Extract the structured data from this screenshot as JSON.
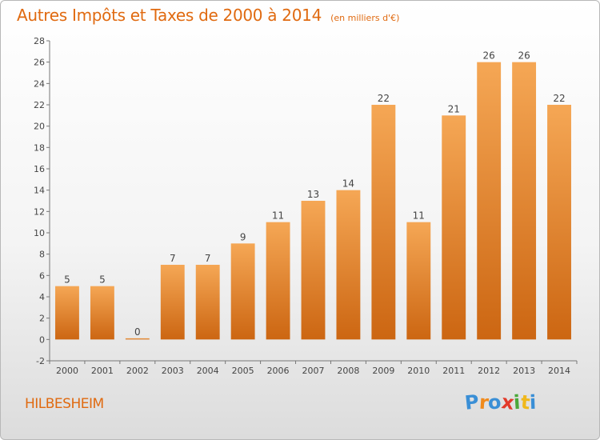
{
  "header": {
    "title": "Autres Impôts et Taxes de 2000 à 2014",
    "unit": "(en milliers d'€)"
  },
  "footer": {
    "city": "HILBESHEIM",
    "brand": "Proxiti",
    "brand_letters": [
      {
        "char": "P",
        "color": "#3a8fd6"
      },
      {
        "char": "r",
        "color": "#f08a1c"
      },
      {
        "char": "o",
        "color": "#3a8fd6"
      },
      {
        "char": "x",
        "color": "#e23a2a"
      },
      {
        "char": "i",
        "color": "#4aa83a"
      },
      {
        "char": "t",
        "color": "#f0b81c"
      },
      {
        "char": "i",
        "color": "#3a8fd6"
      }
    ]
  },
  "chart_data": {
    "type": "bar",
    "title": "Autres Impôts et Taxes de 2000 à 2014",
    "subtitle": "(en milliers d'€)",
    "categories": [
      "2000",
      "2001",
      "2002",
      "2003",
      "2004",
      "2005",
      "2006",
      "2007",
      "2008",
      "2009",
      "2010",
      "2011",
      "2012",
      "2013",
      "2014"
    ],
    "values": [
      5,
      5,
      0,
      7,
      7,
      9,
      11,
      13,
      14,
      22,
      11,
      21,
      26,
      26,
      22
    ],
    "ylim": [
      -2,
      28
    ],
    "yticks": [
      -2,
      0,
      2,
      4,
      6,
      8,
      10,
      12,
      14,
      16,
      18,
      20,
      22,
      24,
      26,
      28
    ],
    "grid": false,
    "legend": "none",
    "colors": {
      "bar_top": "#f5a755",
      "bar_bottom": "#cc6612",
      "axis": "#777777",
      "label": "#444444",
      "accent": "#e06a10"
    }
  }
}
